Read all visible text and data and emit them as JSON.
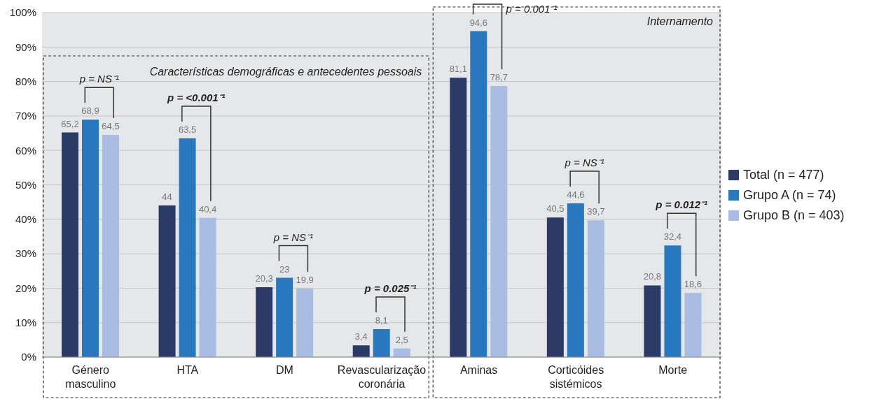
{
  "chart_data": {
    "type": "bar",
    "categories": [
      "Género masculino",
      "HTA",
      "DM",
      "Revascularização coronária",
      "Aminas",
      "Corticóides sistémicos",
      "Morte"
    ],
    "series": [
      {
        "name": "Total (n = 477)",
        "color": "#2b3a67",
        "values": [
          65.2,
          44,
          20.3,
          3.4,
          81.1,
          40.5,
          20.8
        ],
        "value_labels": [
          "65,2",
          "44",
          "20,3",
          "3,4",
          "81,1",
          "40,5",
          "20,8"
        ]
      },
      {
        "name": "Grupo A (n = 74)",
        "color": "#2878be",
        "values": [
          68.9,
          63.5,
          23,
          8.1,
          94.6,
          44.6,
          32.4
        ],
        "value_labels": [
          "68,9",
          "63,5",
          "23",
          "8,1",
          "94,6",
          "44,6",
          "32,4"
        ]
      },
      {
        "name": "Grupo B (n = 403)",
        "color": "#a9bde3",
        "values": [
          64.5,
          40.4,
          19.9,
          2.5,
          78.7,
          39.7,
          18.6
        ],
        "value_labels": [
          "64,5",
          "40,4",
          "19,9",
          "2,5",
          "78,7",
          "39,7",
          "18,6"
        ]
      }
    ],
    "ylim": [
      0,
      100
    ],
    "yticks": [
      {
        "value": 0,
        "label": "0%"
      },
      {
        "value": 10,
        "label": "10%"
      },
      {
        "value": 20,
        "label": "20%"
      },
      {
        "value": 30,
        "label": "30%"
      },
      {
        "value": 40,
        "label": "40%"
      },
      {
        "value": 50,
        "label": "50%"
      },
      {
        "value": 60,
        "label": "60%"
      },
      {
        "value": 70,
        "label": "70%"
      },
      {
        "value": 80,
        "label": "80%"
      },
      {
        "value": 90,
        "label": "90%"
      },
      {
        "value": 100,
        "label": "100%"
      }
    ],
    "grid": "y",
    "legend": "right",
    "annotations": [
      "Características demográficas e antecedentes pessoais",
      "Internamento",
      "p = NS⁻¹",
      "p = <0.001⁻¹",
      "p = NS⁻¹",
      "p = 0.025⁻¹",
      "p = 0.001⁻¹",
      "p = NS⁻¹",
      "p = 0.012⁻¹"
    ]
  }
}
